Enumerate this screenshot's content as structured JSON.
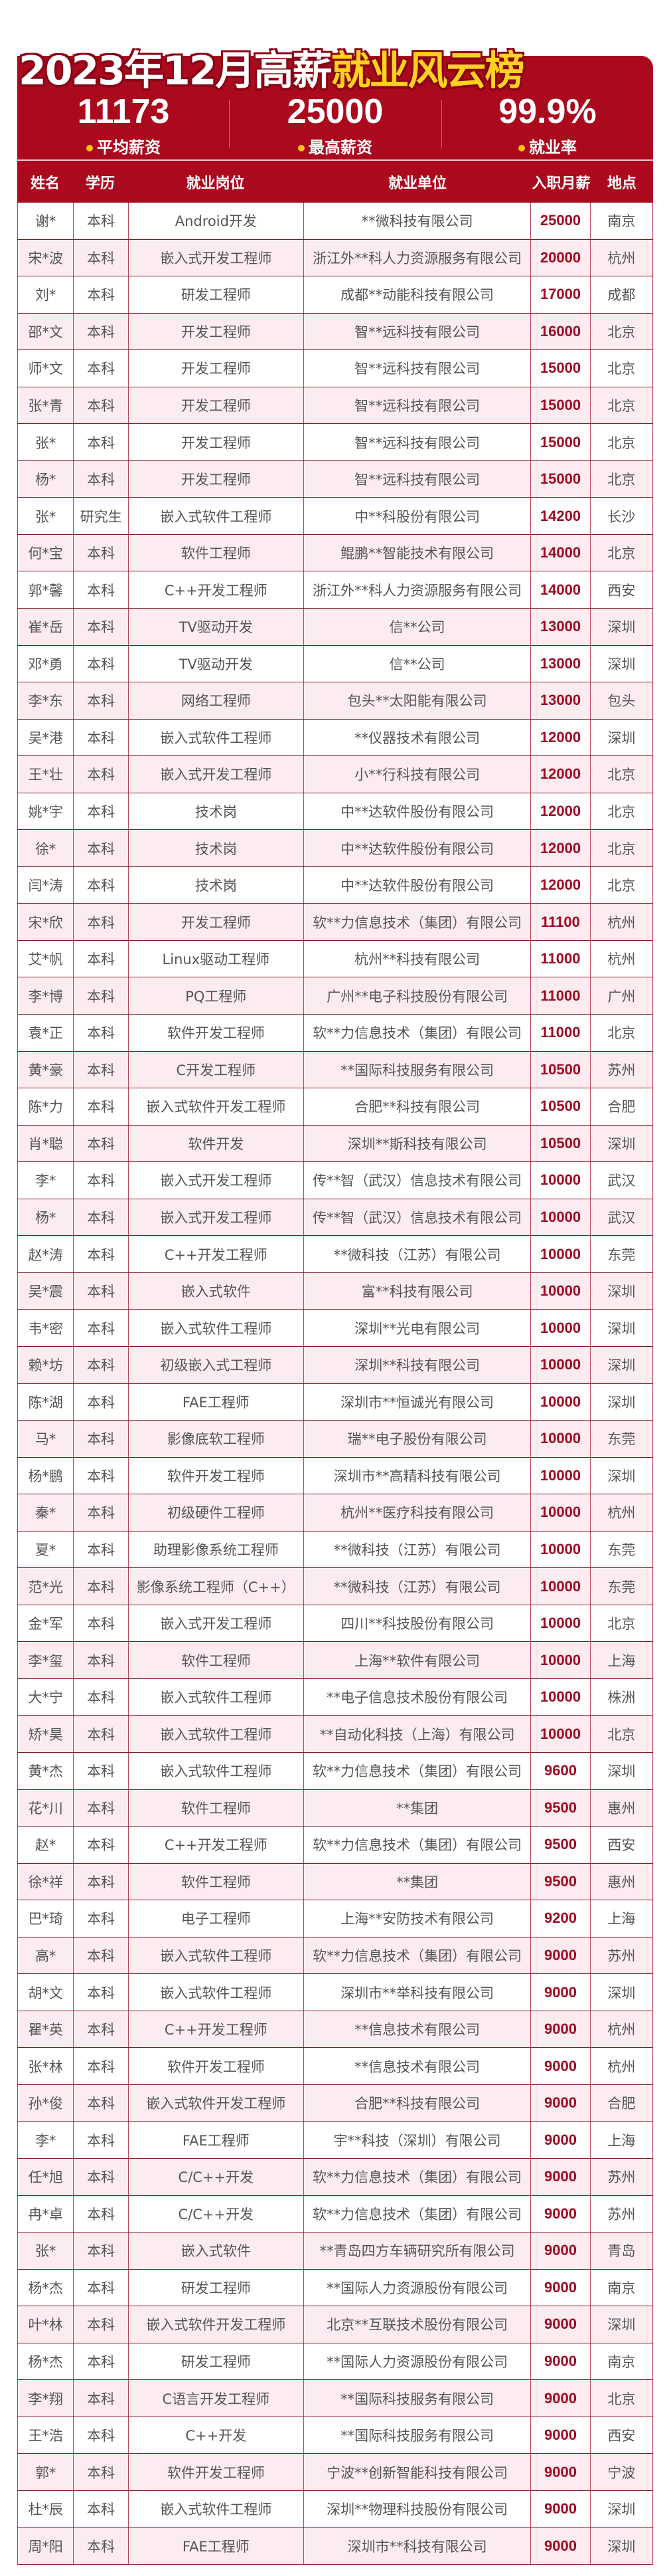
{
  "title": {
    "main": "2023年12月高薪",
    "highlight": "就业风云榜"
  },
  "stats": [
    {
      "value": "11173",
      "label": "平均薪资"
    },
    {
      "value": "25000",
      "label": "最高薪资"
    },
    {
      "value": "99.9%",
      "label": "就业率"
    }
  ],
  "colors": {
    "brand": "#ab0a1e",
    "highlight": "#ffd21f",
    "salary": "#9b0a22",
    "row_alt": "#fcecef"
  },
  "table": {
    "headers": [
      "姓名",
      "学历",
      "就业岗位",
      "就业单位",
      "入职月薪",
      "地点"
    ],
    "rows": [
      [
        "谢*",
        "本科",
        "Android开发",
        "**微科技有限公司",
        "25000",
        "南京"
      ],
      [
        "宋*波",
        "本科",
        "嵌入式开发工程师",
        "浙江外**科人力资源服务有限公司",
        "20000",
        "杭州"
      ],
      [
        "刘*",
        "本科",
        "研发工程师",
        "成都**动能科技有限公司",
        "17000",
        "成都"
      ],
      [
        "邵*文",
        "本科",
        "开发工程师",
        "智**远科技有限公司",
        "16000",
        "北京"
      ],
      [
        "师*文",
        "本科",
        "开发工程师",
        "智**远科技有限公司",
        "15000",
        "北京"
      ],
      [
        "张*青",
        "本科",
        "开发工程师",
        "智**远科技有限公司",
        "15000",
        "北京"
      ],
      [
        "张*",
        "本科",
        "开发工程师",
        "智**远科技有限公司",
        "15000",
        "北京"
      ],
      [
        "杨*",
        "本科",
        "开发工程师",
        "智**远科技有限公司",
        "15000",
        "北京"
      ],
      [
        "张*",
        "研究生",
        "嵌入式软件工程师",
        "中**科股份有限公司",
        "14200",
        "长沙"
      ],
      [
        "何*宝",
        "本科",
        "软件工程师",
        "鲲鹏**智能技术有限公司",
        "14000",
        "北京"
      ],
      [
        "郭*馨",
        "本科",
        "C++开发工程师",
        "浙江外**科人力资源服务有限公司",
        "14000",
        "西安"
      ],
      [
        "崔*岳",
        "本科",
        "TV驱动开发",
        "信**公司",
        "13000",
        "深圳"
      ],
      [
        "邓*勇",
        "本科",
        "TV驱动开发",
        "信**公司",
        "13000",
        "深圳"
      ],
      [
        "李*东",
        "本科",
        "网络工程师",
        "包头**太阳能有限公司",
        "13000",
        "包头"
      ],
      [
        "吴*港",
        "本科",
        "嵌入式软件工程师",
        "**仪器技术有限公司",
        "12000",
        "深圳"
      ],
      [
        "王*壮",
        "本科",
        "嵌入式开发工程师",
        "小**行科技有限公司",
        "12000",
        "北京"
      ],
      [
        "姚*宇",
        "本科",
        "技术岗",
        "中**达软件股份有限公司",
        "12000",
        "北京"
      ],
      [
        "徐*",
        "本科",
        "技术岗",
        "中**达软件股份有限公司",
        "12000",
        "北京"
      ],
      [
        "闫*涛",
        "本科",
        "技术岗",
        "中**达软件股份有限公司",
        "12000",
        "北京"
      ],
      [
        "宋*欣",
        "本科",
        "开发工程师",
        "软**力信息技术（集团）有限公司",
        "11100",
        "杭州"
      ],
      [
        "艾*帆",
        "本科",
        "Linux驱动工程师",
        "杭州**科技有限公司",
        "11000",
        "杭州"
      ],
      [
        "李*博",
        "本科",
        "PQ工程师",
        "广州**电子科技股份有限公司",
        "11000",
        "广州"
      ],
      [
        "袁*正",
        "本科",
        "软件开发工程师",
        "软**力信息技术（集团）有限公司",
        "11000",
        "北京"
      ],
      [
        "黄*豪",
        "本科",
        "C开发工程师",
        "**国际科技服务有限公司",
        "10500",
        "苏州"
      ],
      [
        "陈*力",
        "本科",
        "嵌入式软件开发工程师",
        "合肥**科技有限公司",
        "10500",
        "合肥"
      ],
      [
        "肖*聪",
        "本科",
        "软件开发",
        "深圳**斯科技有限公司",
        "10500",
        "深圳"
      ],
      [
        "李*",
        "本科",
        "嵌入式开发工程师",
        "传**智（武汉）信息技术有限公司",
        "10000",
        "武汉"
      ],
      [
        "杨*",
        "本科",
        "嵌入式开发工程师",
        "传**智（武汉）信息技术有限公司",
        "10000",
        "武汉"
      ],
      [
        "赵*涛",
        "本科",
        "C++开发工程师",
        "**微科技（江苏）有限公司",
        "10000",
        "东莞"
      ],
      [
        "吴*震",
        "本科",
        "嵌入式软件",
        "富**科技有限公司",
        "10000",
        "深圳"
      ],
      [
        "韦*密",
        "本科",
        "嵌入式软件工程师",
        "深圳**光电有限公司",
        "10000",
        "深圳"
      ],
      [
        "赖*坊",
        "本科",
        "初级嵌入式工程师",
        "深圳**科技有限公司",
        "10000",
        "深圳"
      ],
      [
        "陈*湖",
        "本科",
        "FAE工程师",
        "深圳市**恒诚光有限公司",
        "10000",
        "深圳"
      ],
      [
        "马*",
        "本科",
        "影像底软工程师",
        "瑞**电子股份有限公司",
        "10000",
        "东莞"
      ],
      [
        "杨*鹏",
        "本科",
        "软件开发工程师",
        "深圳市**高精科技有限公司",
        "10000",
        "深圳"
      ],
      [
        "秦*",
        "本科",
        "初级硬件工程师",
        "杭州**医疗科技有限公司",
        "10000",
        "杭州"
      ],
      [
        "夏*",
        "本科",
        "助理影像系统工程师",
        "**微科技（江苏）有限公司",
        "10000",
        "东莞"
      ],
      [
        "范*光",
        "本科",
        "影像系统工程师（C++）",
        "**微科技（江苏）有限公司",
        "10000",
        "东莞"
      ],
      [
        "金*军",
        "本科",
        "嵌入式开发工程师",
        "四川**科技股份有限公司",
        "10000",
        "北京"
      ],
      [
        "李*玺",
        "本科",
        "软件工程师",
        "上海**软件有限公司",
        "10000",
        "上海"
      ],
      [
        "大*宁",
        "本科",
        "嵌入式软件工程师",
        "**电子信息技术股份有限公司",
        "10000",
        "株洲"
      ],
      [
        "矫*昊",
        "本科",
        "嵌入式软件工程师",
        "**自动化科技（上海）有限公司",
        "10000",
        "北京"
      ],
      [
        "黄*杰",
        "本科",
        "嵌入式软件工程师",
        "软**力信息技术（集团）有限公司",
        "9600",
        "深圳"
      ],
      [
        "花*川",
        "本科",
        "软件工程师",
        "**集团",
        "9500",
        "惠州"
      ],
      [
        "赵*",
        "本科",
        "C++开发工程师",
        "软**力信息技术（集团）有限公司",
        "9500",
        "西安"
      ],
      [
        "徐*祥",
        "本科",
        "软件工程师",
        "**集团",
        "9500",
        "惠州"
      ],
      [
        "巴*琦",
        "本科",
        "电子工程师",
        "上海**安防技术有限公司",
        "9200",
        "上海"
      ],
      [
        "高*",
        "本科",
        "嵌入式软件工程师",
        "软**力信息技术（集团）有限公司",
        "9000",
        "苏州"
      ],
      [
        "胡*文",
        "本科",
        "嵌入式软件工程师",
        "深圳市**举科技有限公司",
        "9000",
        "深圳"
      ],
      [
        "瞿*英",
        "本科",
        "C++开发工程师",
        "**信息技术有限公司",
        "9000",
        "杭州"
      ],
      [
        "张*林",
        "本科",
        "软件开发工程师",
        "**信息技术有限公司",
        "9000",
        "杭州"
      ],
      [
        "孙*俊",
        "本科",
        "嵌入式软件开发工程师",
        "合肥**科技有限公司",
        "9000",
        "合肥"
      ],
      [
        "李*",
        "本科",
        "FAE工程师",
        "宇**科技（深圳）有限公司",
        "9000",
        "上海"
      ],
      [
        "任*旭",
        "本科",
        "C/C++开发",
        "软**力信息技术（集团）有限公司",
        "9000",
        "苏州"
      ],
      [
        "冉*卓",
        "本科",
        "C/C++开发",
        "软**力信息技术（集团）有限公司",
        "9000",
        "苏州"
      ],
      [
        "张*",
        "本科",
        "嵌入式软件",
        "**青岛四方车辆研究所有限公司",
        "9000",
        "青岛"
      ],
      [
        "杨*杰",
        "本科",
        "研发工程师",
        "**国际人力资源股份有限公司",
        "9000",
        "南京"
      ],
      [
        "叶*林",
        "本科",
        "嵌入式软件开发工程师",
        "北京**互联技术股份有限公司",
        "9000",
        "深圳"
      ],
      [
        "杨*杰",
        "本科",
        "研发工程师",
        "**国际人力资源股份有限公司",
        "9000",
        "南京"
      ],
      [
        "李*翔",
        "本科",
        "C语言开发工程师",
        "**国际科技服务有限公司",
        "9000",
        "北京"
      ],
      [
        "王*浩",
        "本科",
        "C++开发",
        "**国际科技服务有限公司",
        "9000",
        "西安"
      ],
      [
        "郭*",
        "本科",
        "软件开发工程师",
        "宁波**创新智能科技有限公司",
        "9000",
        "宁波"
      ],
      [
        "杜*辰",
        "本科",
        "嵌入式软件工程师",
        "深圳**物理科技股份有限公司",
        "9000",
        "深圳"
      ],
      [
        "周*阳",
        "本科",
        "FAE工程师",
        "深圳市**科技有限公司",
        "9000",
        "深圳"
      ]
    ]
  }
}
